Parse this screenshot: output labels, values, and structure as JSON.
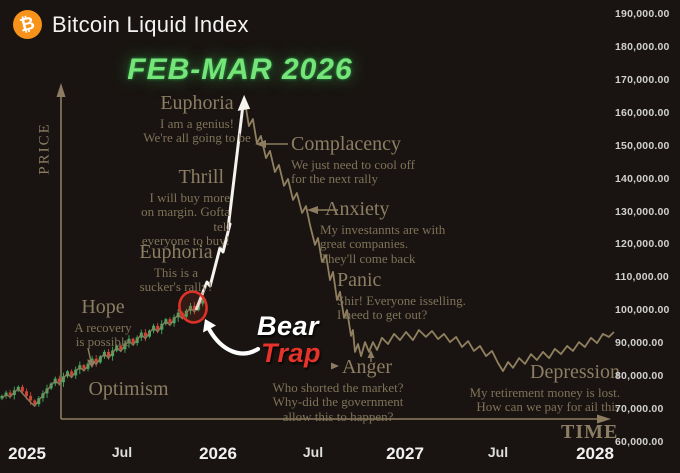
{
  "header": {
    "title": "Bitcoin Liquid Index",
    "logo_symbol": "₿"
  },
  "highlight": {
    "text": "FEB-MAR 2026"
  },
  "bear_trap": {
    "word1": "Bear",
    "word2": "Trap"
  },
  "axes": {
    "price_label": "PRICE",
    "time_label": "TIME",
    "y_ticks": [
      "190,000.00",
      "180,000.00",
      "170,000.00",
      "160,000.00",
      "150,000.00",
      "140,000.00",
      "130,000.00",
      "120,000.00",
      "110,000.00",
      "100,000.00",
      "90,000.00",
      "80,000.00",
      "70,000.00",
      "60,000.00"
    ],
    "x_ticks": [
      "2025",
      "Jul",
      "2026",
      "Jul",
      "2027",
      "Jul",
      "2028"
    ]
  },
  "stages": [
    {
      "name": "Hope",
      "quote": "A recovery\nis possible"
    },
    {
      "name": "Optimism",
      "quote": ""
    },
    {
      "name": "Euphoria",
      "quote": "This is a\nsucker's rally!"
    },
    {
      "name": "Thrill",
      "quote": "I will buy more\non margin. Gofta tell\neveryone to buy!"
    },
    {
      "name": "Euphoria",
      "quote": "I am a genius!\nWe're all going to be"
    },
    {
      "name": "Complacency",
      "quote": "We just need to cool off\nfor the next rally"
    },
    {
      "name": "Anxiety",
      "quote": "My investannts are with\ngreat companies.\nThey'll come back"
    },
    {
      "name": "Panic",
      "quote": "Shir! Everyone isselling.\nI need to get out?"
    },
    {
      "name": "Anger",
      "quote": "Who shorted the market?\nWhy-did the government\nallow this to happen?"
    },
    {
      "name": "Depression",
      "quote": "My retirement money is lost.\nHow can we pay for ail this"
    }
  ],
  "colors": {
    "background": "#191411",
    "candle_up": "#3fae63",
    "candle_down": "#cf4436",
    "curve_tan": "#90805f",
    "ascent_white": "#f5f3ee",
    "highlight_green": "#76e579",
    "trap_red": "#e8332b",
    "bitcoin_orange": "#f7931a",
    "label_tan": "#8d7e63"
  },
  "chart_data": {
    "type": "candlestick+line",
    "title": "Bitcoin Liquid Index",
    "xlabel": "TIME",
    "ylabel": "PRICE",
    "x_tick_labels": [
      "2025",
      "Jul",
      "2026",
      "Jul",
      "2027",
      "Jul",
      "2028"
    ],
    "y_tick_labels": [
      "190,000.00",
      "180,000.00",
      "170,000.00",
      "160,000.00",
      "150,000.00",
      "140,000.00",
      "130,000.00",
      "120,000.00",
      "110,000.00",
      "100,000.00",
      "90,000.00",
      "80,000.00",
      "70,000.00",
      "60,000.00"
    ],
    "y_range_thousands_usd": [
      60,
      190
    ],
    "x_range_years": [
      2024.86,
      2028.35
    ],
    "grid": false,
    "legend": false,
    "candles": {
      "unit": "thousand USD",
      "start_year": 2024.868,
      "step_years": 0.0216,
      "open_close": [
        [
          71.8,
          72.6
        ],
        [
          72.6,
          73.6
        ],
        [
          73.6,
          72.9
        ],
        [
          72.9,
          74.3
        ],
        [
          74.3,
          75.4
        ],
        [
          75.4,
          74.0
        ],
        [
          74.0,
          72.6
        ],
        [
          72.6,
          71.2
        ],
        [
          71.2,
          70.1
        ],
        [
          70.1,
          71.9
        ],
        [
          71.9,
          73.4
        ],
        [
          73.4,
          74.9
        ],
        [
          74.9,
          76.4
        ],
        [
          76.4,
          77.9
        ],
        [
          77.9,
          76.8
        ],
        [
          76.8,
          78.6
        ],
        [
          78.6,
          80.1
        ],
        [
          80.1,
          78.9
        ],
        [
          78.9,
          80.7
        ],
        [
          80.7,
          82.0
        ],
        [
          82.0,
          80.9
        ],
        [
          80.9,
          82.5
        ],
        [
          82.5,
          84.0
        ],
        [
          84.0,
          82.9
        ],
        [
          82.9,
          84.7
        ],
        [
          84.7,
          86.1
        ],
        [
          86.1,
          84.8
        ],
        [
          84.8,
          86.5
        ],
        [
          86.5,
          88.0
        ],
        [
          88.0,
          86.9
        ],
        [
          86.9,
          88.7
        ],
        [
          88.7,
          90.1
        ],
        [
          90.1,
          88.8
        ],
        [
          88.8,
          90.5
        ],
        [
          90.5,
          92.0
        ],
        [
          92.0,
          90.8
        ],
        [
          90.8,
          92.6
        ],
        [
          92.6,
          94.1
        ],
        [
          94.1,
          92.9
        ],
        [
          92.9,
          94.7
        ],
        [
          94.7,
          96.1
        ],
        [
          96.1,
          94.9
        ],
        [
          94.9,
          96.7
        ],
        [
          96.7,
          98.1
        ],
        [
          98.1,
          96.9
        ],
        [
          96.9,
          98.7
        ],
        [
          98.7,
          100.2
        ],
        [
          100.2,
          99.0
        ],
        [
          99.0,
          100.9
        ],
        [
          100.9,
          102.6
        ]
      ]
    },
    "bear_trap_point": {
      "year": 2025.89,
      "price_thousand_usd": 100
    },
    "peak_annotation": {
      "label": "FEB-MAR 2026",
      "year": 2026.14,
      "price_thousand_usd": 163
    },
    "cheat_sheet_curve": {
      "ascent_white": [
        [
          2025.891,
          98.9
        ],
        [
          2025.949,
          107.5
        ],
        [
          2025.965,
          106.3
        ],
        [
          2026.017,
          117.9
        ],
        [
          2026.033,
          116.7
        ],
        [
          2026.07,
          125.3
        ],
        [
          2026.06,
          124.1
        ],
        [
          2026.139,
          162.1
        ]
      ],
      "descent": [
        [
          2026.149,
          162.7
        ],
        [
          2026.17,
          155.3
        ],
        [
          2026.191,
          157.5
        ],
        [
          2026.212,
          150.1
        ],
        [
          2026.233,
          152.3
        ],
        [
          2026.26,
          145.5
        ],
        [
          2026.281,
          147.7
        ],
        [
          2026.307,
          141.2
        ],
        [
          2026.328,
          143.4
        ],
        [
          2026.355,
          137.0
        ],
        [
          2026.376,
          139.1
        ],
        [
          2026.402,
          132.7
        ],
        [
          2026.423,
          134.8
        ],
        [
          2026.45,
          128.7
        ],
        [
          2026.471,
          130.8
        ],
        [
          2026.492,
          125.0
        ],
        [
          2026.518,
          118.9
        ],
        [
          2026.534,
          121.0
        ],
        [
          2026.555,
          113.7
        ],
        [
          2026.576,
          115.8
        ],
        [
          2026.597,
          108.1
        ],
        [
          2026.613,
          110.6
        ],
        [
          2026.634,
          102.0
        ],
        [
          2026.65,
          104.5
        ],
        [
          2026.671,
          96.5
        ],
        [
          2026.687,
          98.9
        ],
        [
          2026.708,
          91.0
        ],
        [
          2026.718,
          92.8
        ],
        [
          2026.729,
          86.1
        ],
        [
          2026.745,
          88.5
        ],
        [
          2026.761,
          84.8
        ],
        [
          2026.782,
          89.1
        ],
        [
          2026.803,
          86.1
        ],
        [
          2026.824,
          89.1
        ],
        [
          2026.845,
          86.7
        ],
        [
          2026.871,
          90.4
        ],
        [
          2026.903,
          88.5
        ],
        [
          2026.935,
          91.6
        ],
        [
          2026.966,
          89.7
        ],
        [
          2026.998,
          92.2
        ],
        [
          2027.035,
          89.7
        ],
        [
          2027.066,
          92.8
        ],
        [
          2027.103,
          90.7
        ],
        [
          2027.135,
          92.5
        ],
        [
          2027.167,
          90.0
        ],
        [
          2027.198,
          91.6
        ],
        [
          2027.23,
          89.1
        ],
        [
          2027.262,
          90.7
        ],
        [
          2027.293,
          87.6
        ],
        [
          2027.325,
          89.4
        ],
        [
          2027.356,
          86.4
        ],
        [
          2027.388,
          87.9
        ],
        [
          2027.42,
          84.8
        ],
        [
          2027.451,
          86.4
        ],
        [
          2027.483,
          82.7
        ],
        [
          2027.509,
          80.2
        ],
        [
          2027.536,
          83.0
        ],
        [
          2027.562,
          81.2
        ],
        [
          2027.594,
          84.2
        ],
        [
          2027.625,
          82.4
        ],
        [
          2027.657,
          85.4
        ],
        [
          2027.688,
          83.6
        ],
        [
          2027.72,
          86.1
        ],
        [
          2027.752,
          84.2
        ],
        [
          2027.783,
          87.0
        ],
        [
          2027.815,
          85.4
        ],
        [
          2027.847,
          87.9
        ],
        [
          2027.878,
          86.4
        ],
        [
          2027.91,
          89.1
        ],
        [
          2027.941,
          87.6
        ],
        [
          2027.973,
          90.4
        ],
        [
          2028.005,
          88.8
        ],
        [
          2028.036,
          91.6
        ],
        [
          2028.068,
          90.7
        ],
        [
          2028.094,
          92.2
        ]
      ]
    }
  }
}
